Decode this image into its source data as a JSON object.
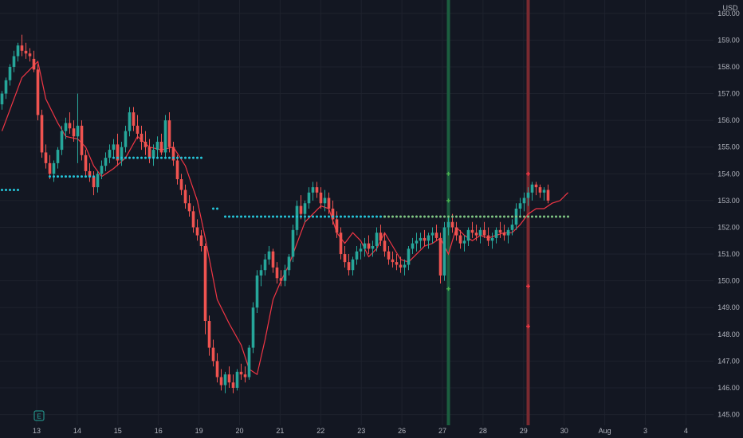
{
  "currency_label": "USD",
  "earnings_badge": "E",
  "colors": {
    "background": "#131722",
    "grid": "#1e222d",
    "up": "#26a69a",
    "down": "#ef5350",
    "ma_line": "#f23645",
    "cyan_dots": "#26c6da",
    "green_dots": "#81c784",
    "vline_green": "#1b5e3f",
    "vline_red": "#7a2a30",
    "marker_green": "#4caf50",
    "marker_red": "#f23645"
  },
  "chart_data": {
    "type": "candlestick",
    "ylim": [
      144.6,
      160.5
    ],
    "y_ticks": [
      "160.00",
      "159.00",
      "158.00",
      "157.00",
      "156.00",
      "155.00",
      "154.00",
      "153.00",
      "152.00",
      "151.00",
      "150.00",
      "149.00",
      "148.00",
      "147.00",
      "146.00",
      "145.00"
    ],
    "y_tick_values": [
      160,
      159,
      158,
      157,
      156,
      155,
      154,
      153,
      152,
      151,
      150,
      149,
      148,
      147,
      146,
      145
    ],
    "x_ticks": [
      "13",
      "14",
      "15",
      "16",
      "19",
      "20",
      "21",
      "22",
      "23",
      "26",
      "27",
      "28",
      "29",
      "30",
      "Aug",
      "3",
      "4"
    ],
    "x_tick_index": [
      0,
      1,
      2,
      3,
      4,
      5,
      6,
      7,
      8,
      9,
      10,
      11,
      12,
      13,
      14,
      15,
      16
    ],
    "candles": [
      [
        156.6,
        157.1,
        156.4,
        157.0
      ],
      [
        157.0,
        157.6,
        156.8,
        157.5
      ],
      [
        157.5,
        158.1,
        157.3,
        158.0
      ],
      [
        158.0,
        158.6,
        157.8,
        158.4
      ],
      [
        158.4,
        158.9,
        158.2,
        158.8
      ],
      [
        158.8,
        159.2,
        158.4,
        158.6
      ],
      [
        158.6,
        158.9,
        158.3,
        158.5
      ],
      [
        158.5,
        158.7,
        158.2,
        158.4
      ],
      [
        158.3,
        158.6,
        157.8,
        157.9
      ],
      [
        157.9,
        158.1,
        156.0,
        156.2
      ],
      [
        156.2,
        156.4,
        154.6,
        154.8
      ],
      [
        154.8,
        155.1,
        154.2,
        154.4
      ],
      [
        154.4,
        154.7,
        153.8,
        154.0
      ],
      [
        154.0,
        154.5,
        153.7,
        154.4
      ],
      [
        154.4,
        155.0,
        154.2,
        154.9
      ],
      [
        154.9,
        155.8,
        154.7,
        155.6
      ],
      [
        155.6,
        156.1,
        155.3,
        155.9
      ],
      [
        155.9,
        156.3,
        155.5,
        155.7
      ],
      [
        155.7,
        156.0,
        155.2,
        155.4
      ],
      [
        155.4,
        157.0,
        154.4,
        155.8
      ],
      [
        155.8,
        156.0,
        154.5,
        154.7
      ],
      [
        154.7,
        154.9,
        153.9,
        154.1
      ],
      [
        154.1,
        154.4,
        153.7,
        153.9
      ],
      [
        153.9,
        154.1,
        153.2,
        153.5
      ],
      [
        153.5,
        154.1,
        153.3,
        154.0
      ],
      [
        154.0,
        154.5,
        153.8,
        154.3
      ],
      [
        154.3,
        154.8,
        154.1,
        154.6
      ],
      [
        154.6,
        155.1,
        154.4,
        154.9
      ],
      [
        154.9,
        155.3,
        154.6,
        155.1
      ],
      [
        155.1,
        155.5,
        154.3,
        154.5
      ],
      [
        154.5,
        155.2,
        154.3,
        155.0
      ],
      [
        155.0,
        155.8,
        154.8,
        155.6
      ],
      [
        155.6,
        156.5,
        155.4,
        156.3
      ],
      [
        156.3,
        156.5,
        155.6,
        155.8
      ],
      [
        155.8,
        156.2,
        155.3,
        155.5
      ],
      [
        155.5,
        155.8,
        154.9,
        155.2
      ],
      [
        155.2,
        155.6,
        154.7,
        155.0
      ],
      [
        155.0,
        155.3,
        154.4,
        154.6
      ],
      [
        154.6,
        155.1,
        154.3,
        154.9
      ],
      [
        154.9,
        155.4,
        154.6,
        155.2
      ],
      [
        155.2,
        155.5,
        154.7,
        154.8
      ],
      [
        154.8,
        156.2,
        154.6,
        156.0
      ],
      [
        156.0,
        156.3,
        154.8,
        155.0
      ],
      [
        155.0,
        155.2,
        154.3,
        154.5
      ],
      [
        154.5,
        154.7,
        153.6,
        153.8
      ],
      [
        153.8,
        154.0,
        153.2,
        153.4
      ],
      [
        153.4,
        153.6,
        152.7,
        152.9
      ],
      [
        152.9,
        153.2,
        152.4,
        152.6
      ],
      [
        152.6,
        152.8,
        151.8,
        152.0
      ],
      [
        152.0,
        152.3,
        151.5,
        151.7
      ],
      [
        151.7,
        151.9,
        151.1,
        151.3
      ],
      [
        151.3,
        151.4,
        148.0,
        148.5
      ],
      [
        148.5,
        148.7,
        147.2,
        147.5
      ],
      [
        147.5,
        147.8,
        146.8,
        147.0
      ],
      [
        147.0,
        147.3,
        146.2,
        146.4
      ],
      [
        146.4,
        146.7,
        145.9,
        146.1
      ],
      [
        146.1,
        146.6,
        145.8,
        146.5
      ],
      [
        146.5,
        146.8,
        146.0,
        146.2
      ],
      [
        146.2,
        146.5,
        145.8,
        146.0
      ],
      [
        146.0,
        146.7,
        145.9,
        146.6
      ],
      [
        146.6,
        146.9,
        146.3,
        146.5
      ],
      [
        146.5,
        146.8,
        146.2,
        146.4
      ],
      [
        146.4,
        147.6,
        146.3,
        147.5
      ],
      [
        147.5,
        149.2,
        147.3,
        149.0
      ],
      [
        149.0,
        150.4,
        148.8,
        150.2
      ],
      [
        150.2,
        150.6,
        149.8,
        150.4
      ],
      [
        150.4,
        151.0,
        150.2,
        150.8
      ],
      [
        150.8,
        151.3,
        150.6,
        151.1
      ],
      [
        151.1,
        151.2,
        150.3,
        150.5
      ],
      [
        150.5,
        150.7,
        149.9,
        150.1
      ],
      [
        150.1,
        150.4,
        149.8,
        150.0
      ],
      [
        150.0,
        150.6,
        149.8,
        150.4
      ],
      [
        150.4,
        151.0,
        150.2,
        150.9
      ],
      [
        150.9,
        152.1,
        150.7,
        151.9
      ],
      [
        151.9,
        153.0,
        151.7,
        152.8
      ],
      [
        152.8,
        153.2,
        152.3,
        152.5
      ],
      [
        152.5,
        153.0,
        152.2,
        152.9
      ],
      [
        152.9,
        153.5,
        152.7,
        153.3
      ],
      [
        153.3,
        153.7,
        153.0,
        153.5
      ],
      [
        153.5,
        153.7,
        153.1,
        153.3
      ],
      [
        153.3,
        153.5,
        152.7,
        152.9
      ],
      [
        152.9,
        153.4,
        152.6,
        153.1
      ],
      [
        153.1,
        153.3,
        152.5,
        152.7
      ],
      [
        152.7,
        153.0,
        152.1,
        152.3
      ],
      [
        152.3,
        152.6,
        151.6,
        151.8
      ],
      [
        151.8,
        152.0,
        150.8,
        151.0
      ],
      [
        151.0,
        151.3,
        150.5,
        150.7
      ],
      [
        150.7,
        151.0,
        150.2,
        150.4
      ],
      [
        150.4,
        150.9,
        150.2,
        150.8
      ],
      [
        150.8,
        151.3,
        150.6,
        151.1
      ],
      [
        151.1,
        151.4,
        150.8,
        151.2
      ],
      [
        151.2,
        151.6,
        150.9,
        151.4
      ],
      [
        151.4,
        151.7,
        151.0,
        151.2
      ],
      [
        151.2,
        151.5,
        150.9,
        151.3
      ],
      [
        151.3,
        152.0,
        151.1,
        151.8
      ],
      [
        151.8,
        152.1,
        151.3,
        151.5
      ],
      [
        151.5,
        151.8,
        150.9,
        151.1
      ],
      [
        151.1,
        151.3,
        150.6,
        150.8
      ],
      [
        150.8,
        151.1,
        150.5,
        150.7
      ],
      [
        150.7,
        151.0,
        150.4,
        150.6
      ],
      [
        150.6,
        150.9,
        150.3,
        150.5
      ],
      [
        150.5,
        150.8,
        150.2,
        150.6
      ],
      [
        150.6,
        151.3,
        150.4,
        151.2
      ],
      [
        151.2,
        151.6,
        151.0,
        151.4
      ],
      [
        151.4,
        151.8,
        151.1,
        151.5
      ],
      [
        151.5,
        151.8,
        151.2,
        151.6
      ],
      [
        151.6,
        151.9,
        151.3,
        151.5
      ],
      [
        151.5,
        151.8,
        151.2,
        151.7
      ],
      [
        151.7,
        152.0,
        151.4,
        151.8
      ],
      [
        151.8,
        152.1,
        151.5,
        151.6
      ],
      [
        151.6,
        151.8,
        149.9,
        150.2
      ],
      [
        150.2,
        152.2,
        150.0,
        152.0
      ],
      [
        152.0,
        152.4,
        151.7,
        152.2
      ],
      [
        152.2,
        152.5,
        151.8,
        152.0
      ],
      [
        152.0,
        152.2,
        151.5,
        151.7
      ],
      [
        151.7,
        151.9,
        151.2,
        151.4
      ],
      [
        151.4,
        151.7,
        151.1,
        151.5
      ],
      [
        151.5,
        152.0,
        151.3,
        151.9
      ],
      [
        151.9,
        152.2,
        151.6,
        151.8
      ],
      [
        151.8,
        152.1,
        151.5,
        151.7
      ],
      [
        151.7,
        152.0,
        151.4,
        151.9
      ],
      [
        151.9,
        152.2,
        151.6,
        151.7
      ],
      [
        151.7,
        152.0,
        151.3,
        151.5
      ],
      [
        151.5,
        151.8,
        151.2,
        151.6
      ],
      [
        151.6,
        152.0,
        151.4,
        151.9
      ],
      [
        151.9,
        152.2,
        151.6,
        151.8
      ],
      [
        151.8,
        152.1,
        151.5,
        151.7
      ],
      [
        151.7,
        152.0,
        151.4,
        151.9
      ],
      [
        151.9,
        152.3,
        151.7,
        152.1
      ],
      [
        152.1,
        152.9,
        151.9,
        152.7
      ],
      [
        152.7,
        153.1,
        152.4,
        152.9
      ],
      [
        152.9,
        153.3,
        152.6,
        153.1
      ],
      [
        153.1,
        153.5,
        152.8,
        153.3
      ],
      [
        153.3,
        153.7,
        153.0,
        153.6
      ],
      [
        153.6,
        153.7,
        153.2,
        153.5
      ],
      [
        153.5,
        153.6,
        153.1,
        153.3
      ],
      [
        153.3,
        153.5,
        153.0,
        153.4
      ],
      [
        153.4,
        153.6,
        152.9,
        153.0
      ]
    ],
    "ma_line": [
      [
        0,
        155.6
      ],
      [
        5,
        157.6
      ],
      [
        9,
        158.2
      ],
      [
        11,
        156.8
      ],
      [
        14,
        155.9
      ],
      [
        16,
        155.4
      ],
      [
        19,
        155.3
      ],
      [
        21,
        155.0
      ],
      [
        23,
        154.3
      ],
      [
        25,
        153.9
      ],
      [
        28,
        154.2
      ],
      [
        31,
        154.6
      ],
      [
        34,
        155.4
      ],
      [
        37,
        155.0
      ],
      [
        40,
        154.9
      ],
      [
        43,
        155.0
      ],
      [
        46,
        154.3
      ],
      [
        49,
        153.0
      ],
      [
        51,
        151.6
      ],
      [
        54,
        149.3
      ],
      [
        57,
        148.4
      ],
      [
        60,
        147.6
      ],
      [
        62,
        146.7
      ],
      [
        64,
        146.5
      ],
      [
        66,
        147.8
      ],
      [
        68,
        149.3
      ],
      [
        70,
        150.0
      ],
      [
        72,
        150.6
      ],
      [
        74,
        151.4
      ],
      [
        76,
        152.2
      ],
      [
        78,
        152.5
      ],
      [
        80,
        152.8
      ],
      [
        82,
        152.7
      ],
      [
        84,
        151.8
      ],
      [
        86,
        151.4
      ],
      [
        88,
        151.8
      ],
      [
        90,
        151.5
      ],
      [
        92,
        150.9
      ],
      [
        94,
        151.2
      ],
      [
        96,
        151.8
      ],
      [
        98,
        151.3
      ],
      [
        100,
        150.8
      ],
      [
        102,
        150.7
      ],
      [
        104,
        151.0
      ],
      [
        106,
        151.3
      ],
      [
        108,
        151.4
      ],
      [
        110,
        151.6
      ],
      [
        112,
        151.0
      ],
      [
        114,
        152.0
      ],
      [
        116,
        151.7
      ],
      [
        118,
        151.5
      ],
      [
        120,
        151.7
      ],
      [
        122,
        151.6
      ],
      [
        124,
        151.7
      ],
      [
        126,
        151.8
      ],
      [
        128,
        151.8
      ],
      [
        130,
        152.1
      ],
      [
        132,
        152.5
      ],
      [
        134,
        152.7
      ],
      [
        136,
        152.7
      ],
      [
        138,
        152.9
      ],
      [
        140,
        153.0
      ],
      [
        142,
        153.3
      ]
    ],
    "dot_levels": [
      {
        "start": 0,
        "end": 4,
        "y": 153.4,
        "color_key": "cyan_dots"
      },
      {
        "start": 12,
        "end": 23,
        "y": 153.9,
        "color_key": "cyan_dots"
      },
      {
        "start": 28,
        "end": 50,
        "y": 154.6,
        "color_key": "cyan_dots"
      },
      {
        "start": 53,
        "end": 54,
        "y": 152.7,
        "color_key": "cyan_dots"
      },
      {
        "start": 56,
        "end": 96,
        "y": 152.4,
        "color_key": "cyan_dots"
      },
      {
        "start": 96,
        "end": 142,
        "y": 152.4,
        "color_key": "green_dots"
      }
    ],
    "vertical_lines": [
      {
        "index": 112,
        "color_key": "vline_green"
      },
      {
        "index": 132,
        "color_key": "vline_red"
      }
    ],
    "cross_markers": [
      {
        "index": 112,
        "y": 154.0,
        "color_key": "marker_green"
      },
      {
        "index": 112,
        "y": 153.0,
        "color_key": "marker_green"
      },
      {
        "index": 112,
        "y": 149.7,
        "color_key": "marker_green"
      },
      {
        "index": 132,
        "y": 154.0,
        "color_key": "marker_red"
      },
      {
        "index": 132,
        "y": 149.8,
        "color_key": "marker_red"
      },
      {
        "index": 132,
        "y": 148.3,
        "color_key": "marker_red"
      }
    ]
  }
}
